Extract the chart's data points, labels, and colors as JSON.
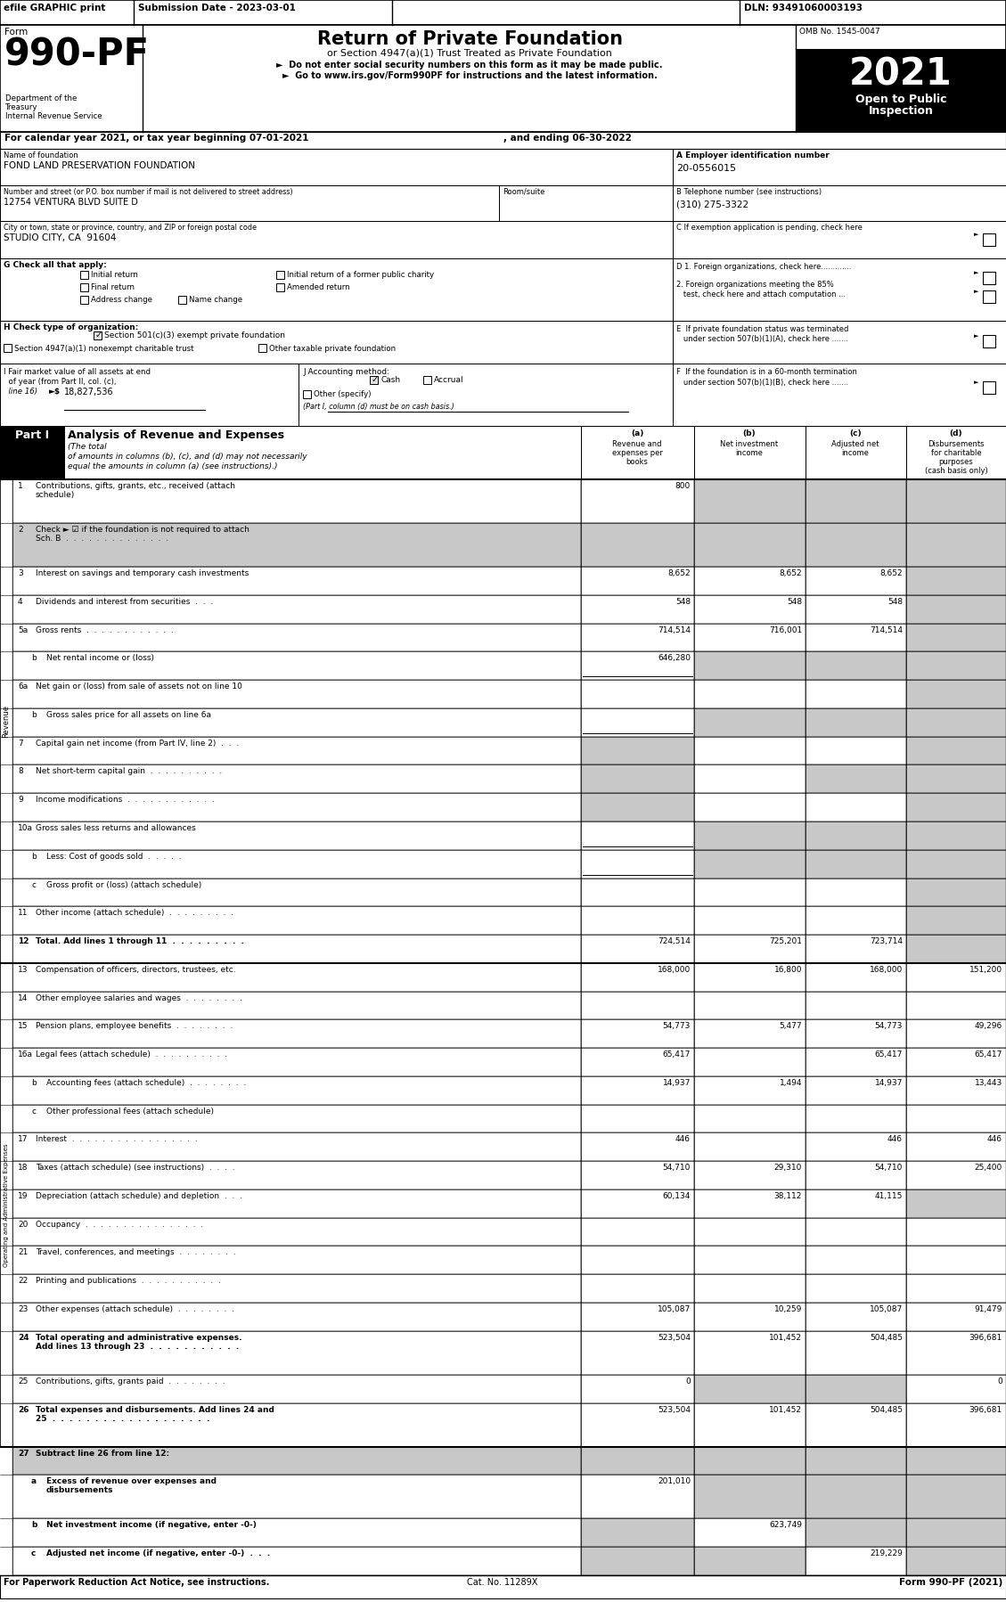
{
  "top_bar_efile": "efile GRAPHIC print",
  "top_bar_submission": "Submission Date - 2023-03-01",
  "top_bar_dln": "DLN: 93491060003193",
  "omb": "OMB No. 1545-0047",
  "year": "2021",
  "open_label": "Open to Public",
  "inspection_label": "Inspection",
  "form_label": "Form",
  "form_number": "990-PF",
  "title": "Return of Private Foundation",
  "subtitle": "or Section 4947(a)(1) Trust Treated as Private Foundation",
  "bullet1": "►  Do not enter social security numbers on this form as it may be made public.",
  "bullet2": "►  Go to www.irs.gov/Form990PF for instructions and the latest information.",
  "dept1": "Department of the",
  "dept2": "Treasury",
  "dept3": "Internal Revenue Service",
  "calendar_line1": "For calendar year 2021, or tax year beginning 07-01-2021",
  "calendar_line2": ", and ending 06-30-2022",
  "name_label": "Name of foundation",
  "name_value": "FOND LAND PRESERVATION FOUNDATION",
  "ein_label": "A Employer identification number",
  "ein_value": "20-0556015",
  "address_label": "Number and street (or P.O. box number if mail is not delivered to street address)",
  "address_value": "12754 VENTURA BLVD SUITE D",
  "room_label": "Room/suite",
  "phone_label": "B Telephone number (see instructions)",
  "phone_value": "(310) 275-3322",
  "city_label": "City or town, state or province, country, and ZIP or foreign postal code",
  "city_value": "STUDIO CITY, CA  91604",
  "c_label": "C If exemption application is pending, check here",
  "g_label": "G Check all that apply:",
  "initial_return": "Initial return",
  "initial_former": "Initial return of a former public charity",
  "final_return": "Final return",
  "amended_return": "Amended return",
  "address_change": "Address change",
  "name_change": "Name change",
  "d1_text": "D 1. Foreign organizations, check here.............",
  "d2_text": "2. Foreign organizations meeting the 85%",
  "d2_text2": "   test, check here and attach computation ...",
  "e_text1": "E  If private foundation status was terminated",
  "e_text2": "   under section 507(b)(1)(A), check here .......",
  "h_label": "H Check type of organization:",
  "h_501": "Section 501(c)(3) exempt private foundation",
  "h_4947": "Section 4947(a)(1) nonexempt charitable trust",
  "h_other": "Other taxable private foundation",
  "i_text1": "I Fair market value of all assets at end",
  "i_text2": "  of year (from Part II, col. (c),",
  "i_text3": "  line 16)",
  "i_value": "18,827,536",
  "j_label": "J Accounting method:",
  "j_cash": "Cash",
  "j_accrual": "Accrual",
  "j_other": "Other (specify)",
  "j_note": "(Part I, column (d) must be on cash basis.)",
  "f_text1": "F  If the foundation is in a 60-month termination",
  "f_text2": "   under section 507(b)(1)(B), check here .......",
  "part1_title": "Analysis of Revenue and Expenses",
  "part1_italic": "(The total",
  "part1_italic2": "of amounts in columns (b), (c), and (d) may not necessarily",
  "part1_italic3": "equal the amounts in column (a) (see instructions).)",
  "col_a_ltr": "(a)",
  "col_a": "Revenue and\nexpenses per\nbooks",
  "col_b_ltr": "(b)",
  "col_b": "Net investment\nincome",
  "col_c_ltr": "(c)",
  "col_c": "Adjusted net\nincome",
  "col_d_ltr": "(d)",
  "col_d": "Disbursements\nfor charitable\npurposes\n(cash basis only)",
  "revenue_label": "Revenue",
  "opex_label": "Operating and Administrative Expenses",
  "rows": [
    {
      "num": "1",
      "label": "Contributions, gifts, grants, etc., received (attach\nschedule)",
      "a": "800",
      "b": "",
      "c": "",
      "d": "",
      "sh_b": true,
      "sh_c": true,
      "sh_d": true
    },
    {
      "num": "2",
      "label": "Check ► ☑ if the foundation is not required to attach\nSch. B  .  .  .  .  .  .  .  .  .  .  .  .  .  .",
      "a": "",
      "b": "",
      "c": "",
      "d": "",
      "sh_a": true,
      "sh_b": true,
      "sh_c": true,
      "sh_d": true
    },
    {
      "num": "3",
      "label": "Interest on savings and temporary cash investments",
      "a": "8,652",
      "b": "8,652",
      "c": "8,652",
      "d": "",
      "sh_d": true
    },
    {
      "num": "4",
      "label": "Dividends and interest from securities  .  .  .",
      "a": "548",
      "b": "548",
      "c": "548",
      "d": "",
      "sh_d": true
    },
    {
      "num": "5a",
      "label": "Gross rents  .  .  .  .  .  .  .  .  .  .  .  .",
      "a": "714,514",
      "b": "716,001",
      "c": "714,514",
      "d": "",
      "sh_d": true
    },
    {
      "num": "b",
      "label": "Net rental income or (loss)",
      "a": "646,280",
      "b": "",
      "c": "",
      "d": "",
      "sh_b": true,
      "sh_c": true,
      "sh_d": true,
      "underline_a": true
    },
    {
      "num": "6a",
      "label": "Net gain or (loss) from sale of assets not on line 10",
      "a": "",
      "b": "",
      "c": "",
      "d": "",
      "sh_d": true
    },
    {
      "num": "b",
      "label": "Gross sales price for all assets on line 6a",
      "a": "",
      "b": "",
      "c": "",
      "d": "",
      "sh_b": true,
      "sh_c": true,
      "sh_d": true,
      "underline_a": true
    },
    {
      "num": "7",
      "label": "Capital gain net income (from Part IV, line 2)  .  .  .",
      "a": "",
      "b": "",
      "c": "",
      "d": "",
      "sh_a": true,
      "sh_d": true
    },
    {
      "num": "8",
      "label": "Net short-term capital gain  .  .  .  .  .  .  .  .  .  .",
      "a": "",
      "b": "",
      "c": "",
      "d": "",
      "sh_a": true,
      "sh_c": true,
      "sh_d": true
    },
    {
      "num": "9",
      "label": "Income modifications  .  .  .  .  .  .  .  .  .  .  .  .",
      "a": "",
      "b": "",
      "c": "",
      "d": "",
      "sh_a": true,
      "sh_d": true
    },
    {
      "num": "10a",
      "label": "Gross sales less returns and allowances",
      "a": "",
      "b": "",
      "c": "",
      "d": "",
      "sh_b": true,
      "sh_c": true,
      "sh_d": true,
      "underline_a": true
    },
    {
      "num": "b",
      "label": "Less: Cost of goods sold  .  .  .  .  .",
      "a": "",
      "b": "",
      "c": "",
      "d": "",
      "sh_b": true,
      "sh_c": true,
      "sh_d": true,
      "underline_a": true
    },
    {
      "num": "c",
      "label": "Gross profit or (loss) (attach schedule)",
      "a": "",
      "b": "",
      "c": "",
      "d": "",
      "sh_d": true
    },
    {
      "num": "11",
      "label": "Other income (attach schedule)  .  .  .  .  .  .  .  .  .",
      "a": "",
      "b": "",
      "c": "",
      "d": "",
      "sh_d": true
    },
    {
      "num": "12",
      "label": "Total. Add lines 1 through 11  .  .  .  .  .  .  .  .  .",
      "a": "724,514",
      "b": "725,201",
      "c": "723,714",
      "d": "",
      "sh_d": true,
      "bold": true
    },
    {
      "num": "13",
      "label": "Compensation of officers, directors, trustees, etc.",
      "a": "168,000",
      "b": "16,800",
      "c": "168,000",
      "d": "151,200"
    },
    {
      "num": "14",
      "label": "Other employee salaries and wages  .  .  .  .  .  .  .  .",
      "a": "",
      "b": "",
      "c": "",
      "d": ""
    },
    {
      "num": "15",
      "label": "Pension plans, employee benefits  .  .  .  .  .  .  .  .",
      "a": "54,773",
      "b": "5,477",
      "c": "54,773",
      "d": "49,296"
    },
    {
      "num": "16a",
      "label": "Legal fees (attach schedule)  .  .  .  .  .  .  .  .  .  .",
      "a": "65,417",
      "b": "",
      "c": "65,417",
      "d": "65,417"
    },
    {
      "num": "b",
      "label": "Accounting fees (attach schedule)  .  .  .  .  .  .  .  .",
      "a": "14,937",
      "b": "1,494",
      "c": "14,937",
      "d": "13,443"
    },
    {
      "num": "c",
      "label": "Other professional fees (attach schedule)",
      "a": "",
      "b": "",
      "c": "",
      "d": ""
    },
    {
      "num": "17",
      "label": "Interest  .  .  .  .  .  .  .  .  .  .  .  .  .  .  .  .  .",
      "a": "446",
      "b": "",
      "c": "446",
      "d": "446"
    },
    {
      "num": "18",
      "label": "Taxes (attach schedule) (see instructions)  .  .  .  .",
      "a": "54,710",
      "b": "29,310",
      "c": "54,710",
      "d": "25,400"
    },
    {
      "num": "19",
      "label": "Depreciation (attach schedule) and depletion  .  .  .",
      "a": "60,134",
      "b": "38,112",
      "c": "41,115",
      "d": "",
      "sh_d": true
    },
    {
      "num": "20",
      "label": "Occupancy  .  .  .  .  .  .  .  .  .  .  .  .  .  .  .  .",
      "a": "",
      "b": "",
      "c": "",
      "d": ""
    },
    {
      "num": "21",
      "label": "Travel, conferences, and meetings  .  .  .  .  .  .  .  .",
      "a": "",
      "b": "",
      "c": "",
      "d": ""
    },
    {
      "num": "22",
      "label": "Printing and publications  .  .  .  .  .  .  .  .  .  .  .",
      "a": "",
      "b": "",
      "c": "",
      "d": ""
    },
    {
      "num": "23",
      "label": "Other expenses (attach schedule)  .  .  .  .  .  .  .  .",
      "a": "105,087",
      "b": "10,259",
      "c": "105,087",
      "d": "91,479"
    },
    {
      "num": "24",
      "label": "Total operating and administrative expenses.\nAdd lines 13 through 23  .  .  .  .  .  .  .  .  .  .  .",
      "a": "523,504",
      "b": "101,452",
      "c": "504,485",
      "d": "396,681",
      "bold": true
    },
    {
      "num": "25",
      "label": "Contributions, gifts, grants paid  .  .  .  .  .  .  .  .",
      "a": "0",
      "b": "",
      "c": "",
      "d": "0",
      "sh_b": true,
      "sh_c": true
    },
    {
      "num": "26",
      "label": "Total expenses and disbursements. Add lines 24 and\n25  .  .  .  .  .  .  .  .  .  .  .  .  .  .  .  .  .  .  .",
      "a": "523,504",
      "b": "101,452",
      "c": "504,485",
      "d": "396,681",
      "bold": true
    },
    {
      "num": "27",
      "label": "Subtract line 26 from line 12:",
      "a": "",
      "b": "",
      "c": "",
      "d": "",
      "sh_a": true,
      "sh_b": true,
      "sh_c": true,
      "sh_d": true,
      "bold": true
    },
    {
      "num": "a",
      "label": "Excess of revenue over expenses and\ndisbursements",
      "a": "201,010",
      "b": "",
      "c": "",
      "d": "",
      "sh_b": true,
      "sh_c": true,
      "sh_d": true,
      "bold": true
    },
    {
      "num": "b",
      "label": "Net investment income (if negative, enter -0-)",
      "a": "",
      "b": "623,749",
      "c": "",
      "d": "",
      "sh_a": true,
      "sh_c": true,
      "sh_d": true,
      "bold": true
    },
    {
      "num": "c",
      "label": "Adjusted net income (if negative, enter -0-)  .  .  .",
      "a": "",
      "b": "",
      "c": "219,229",
      "d": "",
      "sh_a": true,
      "sh_b": true,
      "sh_d": true,
      "bold": true
    }
  ],
  "footer_left": "For Paperwork Reduction Act Notice, see instructions.",
  "footer_cat": "Cat. No. 11289X",
  "footer_right": "Form 990-PF (2021)"
}
